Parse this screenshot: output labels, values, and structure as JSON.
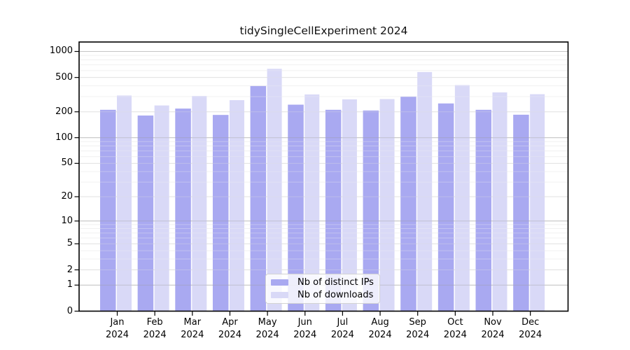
{
  "title": "tidySingleCellExperiment 2024",
  "legend": {
    "items": [
      {
        "label": "Nb of distinct IPs",
        "color": "#a9a9f1"
      },
      {
        "label": "Nb of downloads",
        "color": "#d9d9f7"
      }
    ]
  },
  "chart_data": {
    "type": "bar",
    "title": "tidySingleCellExperiment 2024",
    "categories": [
      "Jan",
      "Feb",
      "Mar",
      "Apr",
      "May",
      "Jun",
      "Jul",
      "Aug",
      "Sep",
      "Oct",
      "Nov",
      "Dec"
    ],
    "year": "2024",
    "series": [
      {
        "name": "Nb of distinct IPs",
        "color": "#a9a9f1",
        "values": [
          211,
          181,
          218,
          184,
          398,
          242,
          211,
          207,
          299,
          250,
          211,
          185
        ]
      },
      {
        "name": "Nb of downloads",
        "color": "#d9d9f7",
        "values": [
          309,
          237,
          305,
          273,
          630,
          318,
          279,
          281,
          578,
          408,
          336,
          320
        ]
      }
    ],
    "yscale": "log1p",
    "yticks": [
      0,
      1,
      2,
      5,
      10,
      20,
      50,
      100,
      200,
      500,
      1000
    ],
    "ylim": [
      0,
      1300
    ],
    "grid": true,
    "legend_position": "lower center"
  }
}
